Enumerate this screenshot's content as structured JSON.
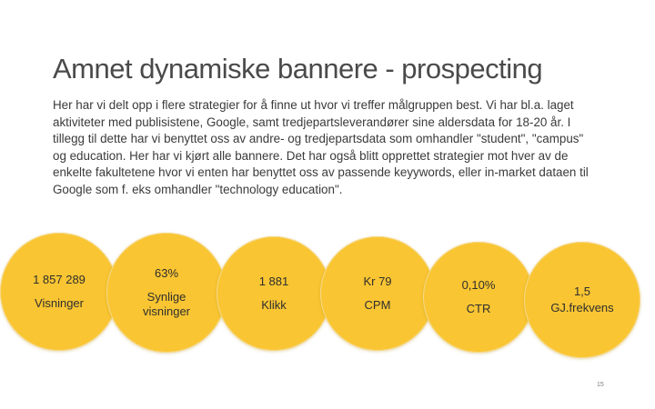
{
  "slide": {
    "title": "Amnet dynamiske bannere - prospecting",
    "body": "Her har vi delt opp i flere strategier for å finne ut hvor vi treffer målgruppen best. Vi har bl.a. laget aktiviteter med publisistene, Google, samt tredjepartsleverandører sine aldersdata for 18-20 år. I tillegg til dette har vi benyttet oss av andre- og tredjepartsdata som omhandler \"student\", \"campus\" og education. Her har vi kjørt alle bannere. Det har også blitt opprettet strategier mot hver av de enkelte fakultetene hvor vi enten har benyttet oss av passende keyywords, eller in-market dataen til Google som f. eks omhandler \"technology education\".",
    "page_number": "15"
  },
  "metrics": [
    {
      "value": "1 857 289",
      "label": "Visninger"
    },
    {
      "value": "63%",
      "label": "Synlige visninger"
    },
    {
      "value": "1 881",
      "label": "Klikk"
    },
    {
      "value": "Kr 79",
      "label": "CPM"
    },
    {
      "value": "0,10%",
      "label": "CTR"
    },
    {
      "value": "1,5",
      "label": "GJ.frekvens"
    }
  ],
  "colors": {
    "circle_fill": "#f9c532",
    "title": "#4a4a4a"
  }
}
